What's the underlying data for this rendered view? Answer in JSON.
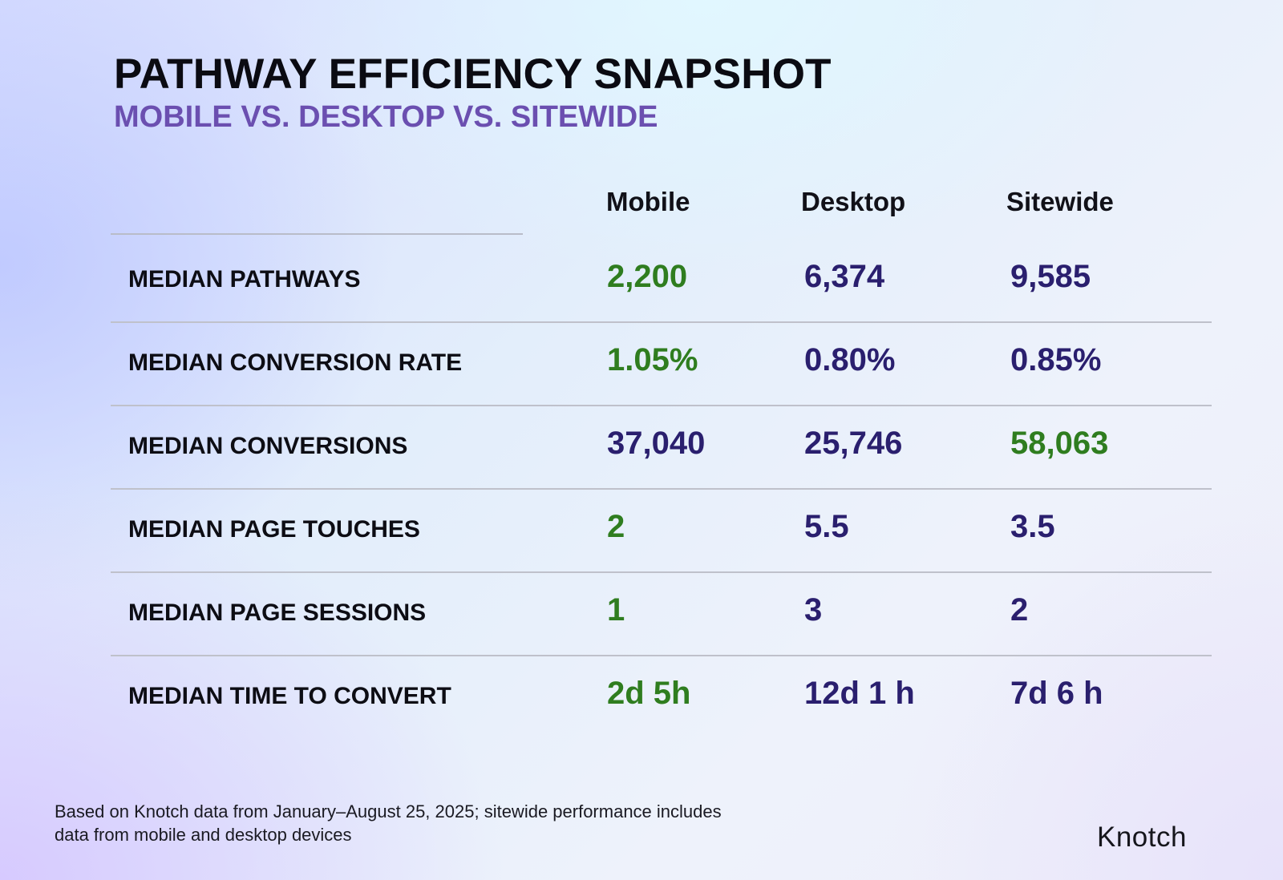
{
  "colors": {
    "highlight": "#2f7d1f",
    "normal": "#2a1f6e",
    "subtitle": "#6b4fb0"
  },
  "title": "PATHWAY EFFICIENCY SNAPSHOT",
  "subtitle": "MOBILE VS. DESKTOP VS. SITEWIDE",
  "chart_data": {
    "type": "table",
    "columns": [
      "Mobile",
      "Desktop",
      "Sitewide"
    ],
    "rows": [
      {
        "label": "MEDIAN PATHWAYS",
        "values": [
          "2,200",
          "6,374",
          "9,585"
        ],
        "highlight": [
          true,
          false,
          false
        ]
      },
      {
        "label": "MEDIAN CONVERSION RATE",
        "values": [
          "1.05%",
          "0.80%",
          "0.85%"
        ],
        "highlight": [
          true,
          false,
          false
        ]
      },
      {
        "label": "MEDIAN CONVERSIONS",
        "values": [
          "37,040",
          "25,746",
          "58,063"
        ],
        "highlight": [
          false,
          false,
          true
        ]
      },
      {
        "label": "MEDIAN PAGE TOUCHES",
        "values": [
          "2",
          "5.5",
          "3.5"
        ],
        "highlight": [
          true,
          false,
          false
        ]
      },
      {
        "label": "MEDIAN PAGE SESSIONS",
        "values": [
          "1",
          "3",
          "2"
        ],
        "highlight": [
          true,
          false,
          false
        ]
      },
      {
        "label": "MEDIAN TIME TO CONVERT",
        "values": [
          "2d 5h",
          "12d 1 h",
          "7d 6 h"
        ],
        "highlight": [
          true,
          false,
          false
        ]
      }
    ]
  },
  "footnote": {
    "line1": "Based on Knotch data from January–August 25, 2025; sitewide performance includes",
    "line2": "data from mobile and desktop devices"
  },
  "logo": "Knotch"
}
